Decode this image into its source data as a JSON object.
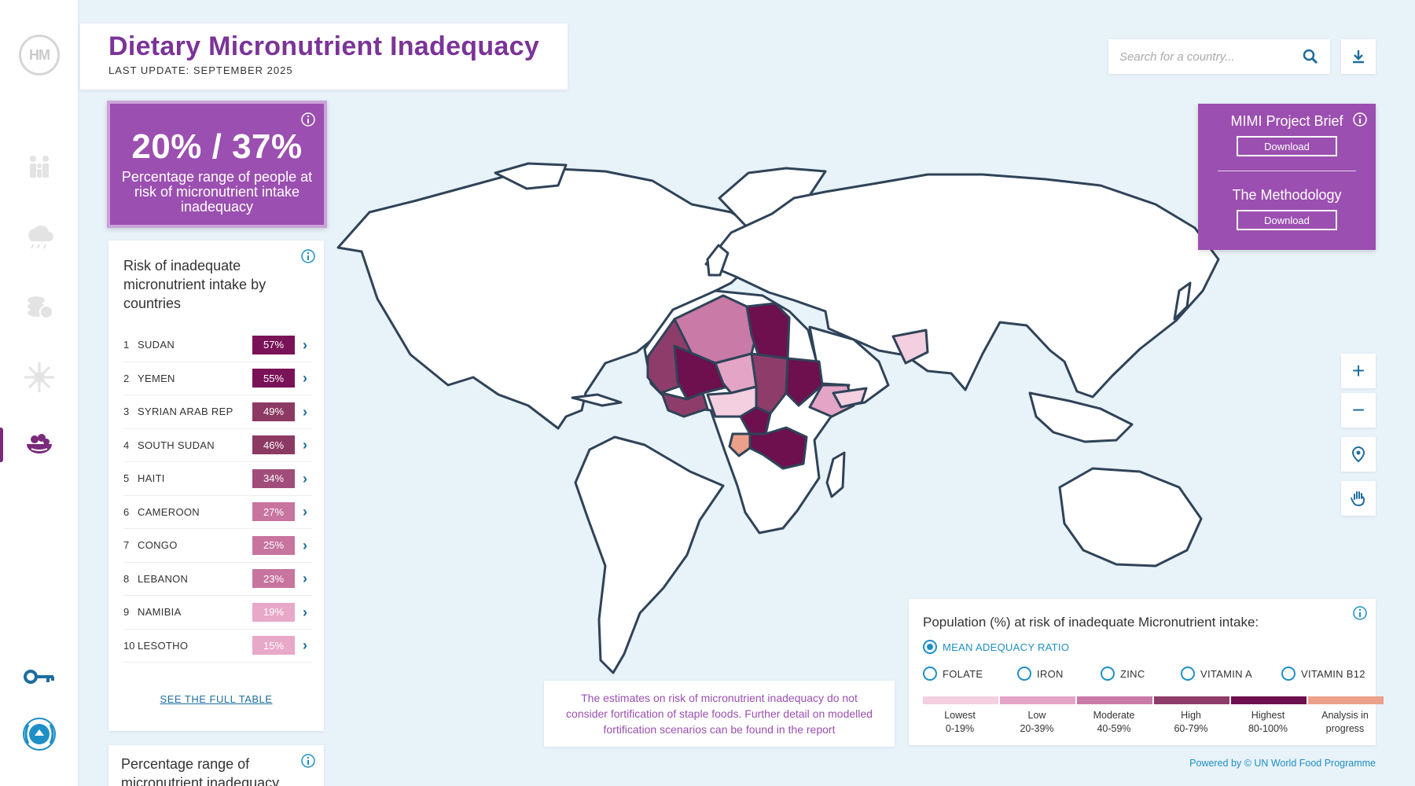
{
  "header": {
    "title": "Dietary Micronutrient Inadequacy",
    "last_update": "LAST UPDATE: SEPTEMBER 2025"
  },
  "sidebar": {
    "logo_text": "HM",
    "items": [
      {
        "icon": "population-icon"
      },
      {
        "icon": "climate-icon"
      },
      {
        "icon": "food-security-icon"
      },
      {
        "icon": "virus-icon"
      },
      {
        "icon": "nutrition-bowl-icon",
        "active": true
      }
    ],
    "bottom": [
      {
        "icon": "key-icon"
      },
      {
        "icon": "wfp-logo"
      }
    ]
  },
  "search": {
    "placeholder": "Search for a country..."
  },
  "stat": {
    "value": "20% / 37%",
    "caption": "Percentage range of people at risk of micronutrient intake inadequacy"
  },
  "ranking": {
    "title": "Risk of inadequate micronutrient intake by countries",
    "rows": [
      {
        "rank": "1",
        "country": "SUDAN",
        "value": "57%",
        "color": "#7a1257"
      },
      {
        "rank": "2",
        "country": "YEMEN",
        "value": "55%",
        "color": "#7a1257"
      },
      {
        "rank": "3",
        "country": "SYRIAN ARAB REP",
        "value": "49%",
        "color": "#8c3a63"
      },
      {
        "rank": "4",
        "country": "SOUTH SUDAN",
        "value": "46%",
        "color": "#8c3a63"
      },
      {
        "rank": "5",
        "country": "HAITI",
        "value": "34%",
        "color": "#a04d7b"
      },
      {
        "rank": "6",
        "country": "CAMEROON",
        "value": "27%",
        "color": "#c7749f"
      },
      {
        "rank": "7",
        "country": "CONGO",
        "value": "25%",
        "color": "#c7749f"
      },
      {
        "rank": "8",
        "country": "LEBANON",
        "value": "23%",
        "color": "#c7749f"
      },
      {
        "rank": "9",
        "country": "NAMIBIA",
        "value": "19%",
        "color": "#e8a8c8"
      },
      {
        "rank": "10",
        "country": "LESOTHO",
        "value": "15%",
        "color": "#e8a8c8"
      }
    ],
    "see_full_table": "SEE THE FULL TABLE"
  },
  "range_card": {
    "title": "Percentage range of micronutrient inadequacy"
  },
  "brief": {
    "project_title": "MIMI Project Brief",
    "project_button": "Download",
    "methodology_title": "The Methodology",
    "methodology_button": "Download"
  },
  "map_controls": {
    "zoom_in": "+",
    "zoom_out": "−"
  },
  "legend": {
    "title": "Population (%) at risk of inadequate Micronutrient intake:",
    "options": [
      {
        "label": "MEAN ADEQUACY RATIO",
        "selected": true
      },
      {
        "label": "FOLATE",
        "selected": false
      },
      {
        "label": "IRON",
        "selected": false
      },
      {
        "label": "ZINC",
        "selected": false
      },
      {
        "label": "VITAMIN A",
        "selected": false
      },
      {
        "label": "VITAMIN B12",
        "selected": false
      }
    ],
    "scale": [
      {
        "label": "Lowest",
        "range": "0-19%",
        "color": "#f3cfe0"
      },
      {
        "label": "Low",
        "range": "20-39%",
        "color": "#e4a4c6"
      },
      {
        "label": "Moderate",
        "range": "40-59%",
        "color": "#c97aa7"
      },
      {
        "label": "High",
        "range": "60-79%",
        "color": "#8e3d6a"
      },
      {
        "label": "Highest",
        "range": "80-100%",
        "color": "#6e0f4e"
      },
      {
        "label": "Analysis in",
        "range": "progress",
        "color": "#eba089"
      }
    ]
  },
  "note": "The estimates on risk of micronutrient inadequacy do not consider fortification of staple foods. Further detail on modelled fortification scenarios can be found in the report",
  "footer": "Powered by © UN World Food Programme"
}
